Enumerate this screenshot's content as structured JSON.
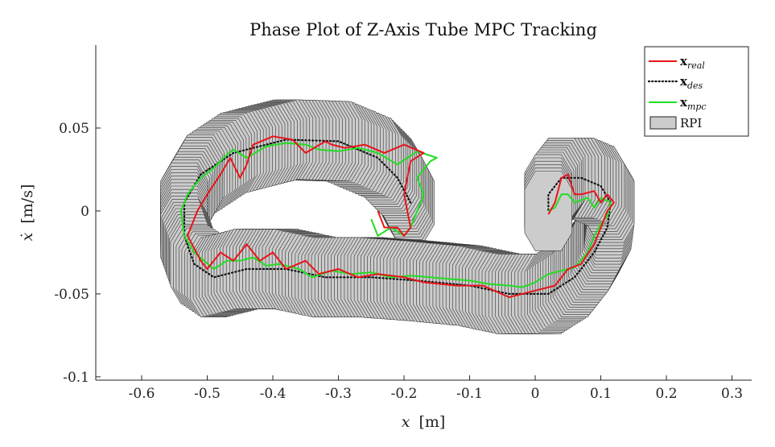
{
  "chart_data": {
    "type": "line",
    "title": "Phase Plot of Z-Axis Tube MPC Tracking",
    "xlabel_var": "x",
    "xlabel_unit": "[m]",
    "ylabel_var": "ẋ",
    "ylabel_unit": "[m/s]",
    "xlim": [
      -0.67,
      0.33
    ],
    "ylim": [
      -0.102,
      0.1
    ],
    "xticks": [
      -0.6,
      -0.5,
      -0.4,
      -0.3,
      -0.2,
      -0.1,
      0,
      0.1,
      0.2,
      0.3
    ],
    "xtick_labels": [
      "-0.6",
      "-0.5",
      "-0.4",
      "-0.3",
      "-0.2",
      "-0.1",
      "0",
      "0.1",
      "0.2",
      "0.3"
    ],
    "yticks": [
      0.05,
      0,
      -0.05,
      -0.1
    ],
    "ytick_labels": [
      "0.05",
      "0",
      "-0.05",
      "-0.1"
    ],
    "grid": false,
    "legend_position": "top-right",
    "legend": [
      {
        "key": "real",
        "base": "x",
        "sub": "real",
        "color": "#e8141b",
        "style": "solid"
      },
      {
        "key": "des",
        "base": "x",
        "sub": "des",
        "color": "#111111",
        "style": "dotted"
      },
      {
        "key": "mpc",
        "base": "x",
        "sub": "mpc",
        "color": "#22dd22",
        "style": "solid"
      },
      {
        "key": "rpi",
        "base": "RPI",
        "sub": "",
        "color": "#cccccc",
        "style": "patch"
      }
    ],
    "rpi_size": {
      "dx": 0.036,
      "dy": 0.024
    },
    "series": {
      "des": [
        [
          -0.19,
          0.005
        ],
        [
          -0.21,
          0.02
        ],
        [
          -0.24,
          0.032
        ],
        [
          -0.3,
          0.042
        ],
        [
          -0.38,
          0.043
        ],
        [
          -0.46,
          0.035
        ],
        [
          -0.51,
          0.022
        ],
        [
          -0.535,
          0.005
        ],
        [
          -0.535,
          -0.015
        ],
        [
          -0.52,
          -0.032
        ],
        [
          -0.49,
          -0.04
        ],
        [
          -0.44,
          -0.035
        ],
        [
          -0.38,
          -0.035
        ],
        [
          -0.32,
          -0.04
        ],
        [
          -0.25,
          -0.04
        ],
        [
          -0.18,
          -0.042
        ],
        [
          -0.1,
          -0.045
        ],
        [
          -0.04,
          -0.05
        ],
        [
          0.02,
          -0.05
        ],
        [
          0.06,
          -0.04
        ],
        [
          0.09,
          -0.025
        ],
        [
          0.11,
          -0.01
        ],
        [
          0.115,
          0.005
        ],
        [
          0.1,
          0.015
        ],
        [
          0.07,
          0.02
        ],
        [
          0.04,
          0.02
        ],
        [
          0.02,
          0.01
        ],
        [
          0.02,
          0
        ]
      ],
      "real": [
        [
          -0.24,
          0
        ],
        [
          -0.23,
          -0.01
        ],
        [
          -0.21,
          -0.01
        ],
        [
          -0.2,
          -0.015
        ],
        [
          -0.19,
          -0.01
        ],
        [
          -0.2,
          0.01
        ],
        [
          -0.19,
          0.03
        ],
        [
          -0.17,
          0.035
        ],
        [
          -0.2,
          0.04
        ],
        [
          -0.23,
          0.035
        ],
        [
          -0.26,
          0.04
        ],
        [
          -0.29,
          0.038
        ],
        [
          -0.31,
          0.04
        ],
        [
          -0.32,
          0.042
        ],
        [
          -0.35,
          0.035
        ],
        [
          -0.37,
          0.043
        ],
        [
          -0.4,
          0.045
        ],
        [
          -0.43,
          0.04
        ],
        [
          -0.44,
          0.028
        ],
        [
          -0.45,
          0.02
        ],
        [
          -0.465,
          0.032
        ],
        [
          -0.48,
          0.022
        ],
        [
          -0.5,
          0.01
        ],
        [
          -0.515,
          0
        ],
        [
          -0.53,
          -0.015
        ],
        [
          -0.51,
          -0.03
        ],
        [
          -0.5,
          -0.035
        ],
        [
          -0.48,
          -0.025
        ],
        [
          -0.46,
          -0.03
        ],
        [
          -0.44,
          -0.02
        ],
        [
          -0.42,
          -0.03
        ],
        [
          -0.4,
          -0.025
        ],
        [
          -0.38,
          -0.035
        ],
        [
          -0.35,
          -0.03
        ],
        [
          -0.33,
          -0.038
        ],
        [
          -0.3,
          -0.035
        ],
        [
          -0.27,
          -0.04
        ],
        [
          -0.24,
          -0.038
        ],
        [
          -0.2,
          -0.04
        ],
        [
          -0.17,
          -0.043
        ],
        [
          -0.12,
          -0.045
        ],
        [
          -0.08,
          -0.045
        ],
        [
          -0.04,
          -0.052
        ],
        [
          0,
          -0.048
        ],
        [
          0.03,
          -0.045
        ],
        [
          0.05,
          -0.035
        ],
        [
          0.07,
          -0.032
        ],
        [
          0.09,
          -0.02
        ],
        [
          0.1,
          -0.01
        ],
        [
          0.11,
          0
        ],
        [
          0.12,
          0.005
        ],
        [
          0.11,
          0.01
        ],
        [
          0.1,
          0.005
        ],
        [
          0.09,
          0.012
        ],
        [
          0.07,
          0.01
        ],
        [
          0.06,
          0.01
        ],
        [
          0.05,
          0.022
        ],
        [
          0.04,
          0.02
        ],
        [
          0.03,
          0.005
        ],
        [
          0.02,
          -0.002
        ]
      ],
      "mpc": [
        [
          -0.25,
          -0.005
        ],
        [
          -0.24,
          -0.015
        ],
        [
          -0.22,
          -0.01
        ],
        [
          -0.2,
          -0.015
        ],
        [
          -0.19,
          -0.01
        ],
        [
          -0.18,
          0
        ],
        [
          -0.17,
          0.01
        ],
        [
          -0.18,
          0.02
        ],
        [
          -0.16,
          0.03
        ],
        [
          -0.15,
          0.032
        ],
        [
          -0.18,
          0.036
        ],
        [
          -0.21,
          0.028
        ],
        [
          -0.24,
          0.035
        ],
        [
          -0.27,
          0.038
        ],
        [
          -0.3,
          0.036
        ],
        [
          -0.33,
          0.037
        ],
        [
          -0.35,
          0.04
        ],
        [
          -0.38,
          0.041
        ],
        [
          -0.41,
          0.039
        ],
        [
          -0.44,
          0.032
        ],
        [
          -0.46,
          0.037
        ],
        [
          -0.47,
          0.034
        ],
        [
          -0.49,
          0.026
        ],
        [
          -0.51,
          0.02
        ],
        [
          -0.53,
          0.01
        ],
        [
          -0.54,
          0
        ],
        [
          -0.535,
          -0.015
        ],
        [
          -0.52,
          -0.025
        ],
        [
          -0.505,
          -0.03
        ],
        [
          -0.49,
          -0.035
        ],
        [
          -0.47,
          -0.03
        ],
        [
          -0.45,
          -0.03
        ],
        [
          -0.43,
          -0.028
        ],
        [
          -0.41,
          -0.033
        ],
        [
          -0.39,
          -0.032
        ],
        [
          -0.36,
          -0.035
        ],
        [
          -0.34,
          -0.04
        ],
        [
          -0.31,
          -0.036
        ],
        [
          -0.28,
          -0.038
        ],
        [
          -0.25,
          -0.037
        ],
        [
          -0.22,
          -0.04
        ],
        [
          -0.19,
          -0.039
        ],
        [
          -0.16,
          -0.04
        ],
        [
          -0.13,
          -0.041
        ],
        [
          -0.1,
          -0.042
        ],
        [
          -0.07,
          -0.044
        ],
        [
          -0.04,
          -0.045
        ],
        [
          -0.02,
          -0.046
        ],
        [
          0,
          -0.043
        ],
        [
          0.02,
          -0.038
        ],
        [
          0.04,
          -0.036
        ],
        [
          0.06,
          -0.034
        ],
        [
          0.08,
          -0.025
        ],
        [
          0.09,
          -0.015
        ],
        [
          0.1,
          -0.008
        ],
        [
          0.11,
          -0.003
        ],
        [
          0.115,
          0.005
        ],
        [
          0.1,
          0.008
        ],
        [
          0.09,
          0.002
        ],
        [
          0.08,
          0.008
        ],
        [
          0.06,
          0.005
        ],
        [
          0.05,
          0.01
        ],
        [
          0.04,
          0.01
        ],
        [
          0.03,
          0.002
        ],
        [
          0.02,
          0
        ]
      ]
    }
  }
}
